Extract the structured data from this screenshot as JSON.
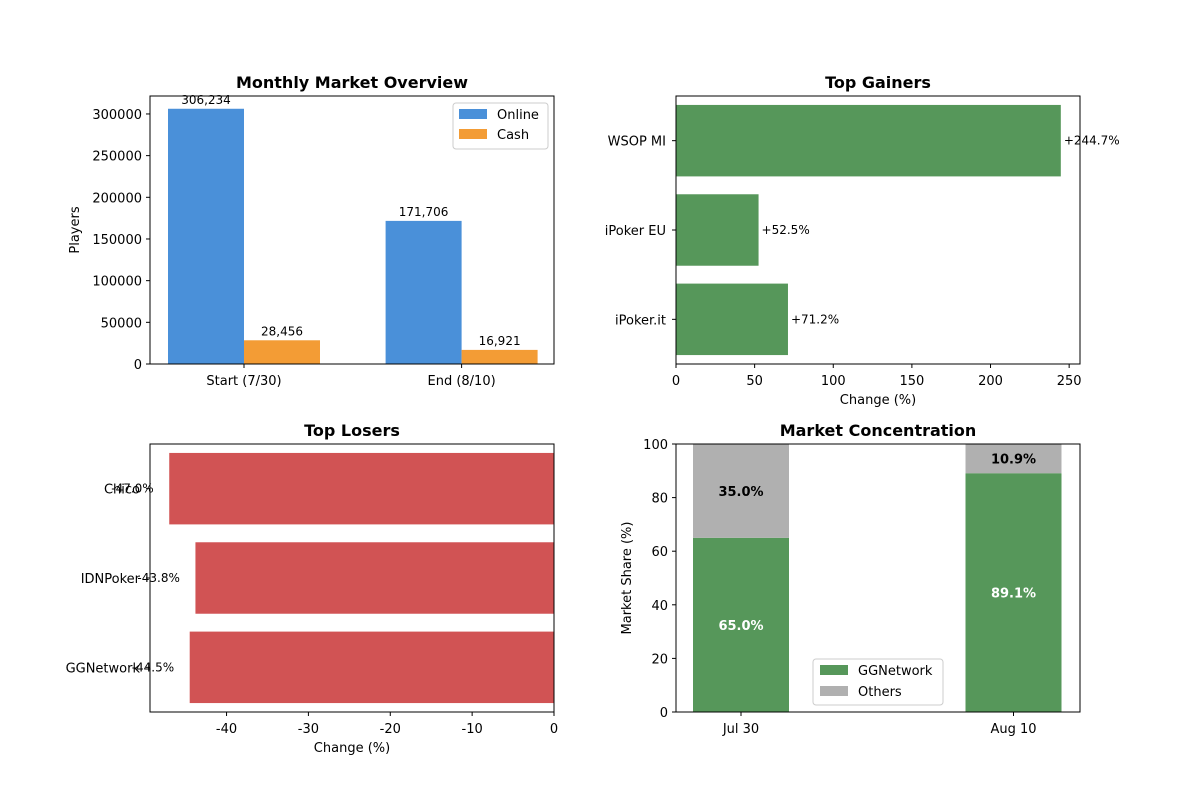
{
  "chart_data": [
    {
      "id": "overview",
      "type": "bar",
      "title": "Monthly Market Overview",
      "xlabel": "",
      "ylabel": "Players",
      "categories": [
        "Start (7/30)",
        "End (8/10)"
      ],
      "series": [
        {
          "name": "Online",
          "values": [
            306234,
            171706
          ],
          "labels": [
            "306,234",
            "171,706"
          ],
          "color": "#4a90d9"
        },
        {
          "name": "Cash",
          "values": [
            28456,
            16921
          ],
          "labels": [
            "28,456",
            "16,921"
          ],
          "color": "#f39c35"
        }
      ],
      "ylim": [
        0,
        321546
      ],
      "yticks": [
        0,
        50000,
        100000,
        150000,
        200000,
        250000,
        300000
      ],
      "yticklabels": [
        "0",
        "50000",
        "100000",
        "150000",
        "200000",
        "250000",
        "300000"
      ],
      "legend": "top-right",
      "grid": false
    },
    {
      "id": "gainers",
      "type": "bar",
      "orientation": "horizontal",
      "title": "Top Gainers",
      "xlabel": "Change (%)",
      "ylabel": "",
      "categories": [
        "WSOP MI",
        "iPoker EU",
        "iPoker.it"
      ],
      "values": [
        244.7,
        52.5,
        71.2
      ],
      "labels": [
        "+244.7%",
        "+52.5%",
        "+71.2%"
      ],
      "color": "#56975a",
      "xlim": [
        0,
        256.9
      ],
      "xticks": [
        0,
        50,
        100,
        150,
        200,
        250
      ],
      "xticklabels": [
        "0",
        "50",
        "100",
        "150",
        "200",
        "250"
      ],
      "grid": false
    },
    {
      "id": "losers",
      "type": "bar",
      "orientation": "horizontal",
      "title": "Top Losers",
      "xlabel": "Change (%)",
      "ylabel": "",
      "categories": [
        "Chico",
        "IDNPoker",
        "GGNetwork"
      ],
      "values": [
        -47.0,
        -43.8,
        -44.5
      ],
      "labels": [
        "-47.0%",
        "-43.8%",
        "-44.5%"
      ],
      "color": "#d15354",
      "xlim": [
        -49.35,
        0
      ],
      "xticks": [
        -40,
        -30,
        -20,
        -10,
        0
      ],
      "xticklabels": [
        "-40",
        "-30",
        "-20",
        "-10",
        "0"
      ],
      "grid": false
    },
    {
      "id": "concentration",
      "type": "bar",
      "stacked": true,
      "title": "Market Concentration",
      "xlabel": "",
      "ylabel": "Market Share (%)",
      "categories": [
        "Jul 30",
        "Aug 10"
      ],
      "series": [
        {
          "name": "GGNetwork",
          "values": [
            65.0,
            89.1
          ],
          "labels": [
            "65.0%",
            "89.1%"
          ],
          "color": "#56975a",
          "label_color": "#ffffff"
        },
        {
          "name": "Others",
          "values": [
            35.0,
            10.9
          ],
          "labels": [
            "35.0%",
            "10.9%"
          ],
          "color": "#b0b0b0",
          "label_color": "#000000"
        }
      ],
      "ylim": [
        0,
        100
      ],
      "yticks": [
        0,
        20,
        40,
        60,
        80,
        100
      ],
      "yticklabels": [
        "0",
        "20",
        "40",
        "60",
        "80",
        "100"
      ],
      "legend": "bottom-center",
      "grid": false
    }
  ]
}
